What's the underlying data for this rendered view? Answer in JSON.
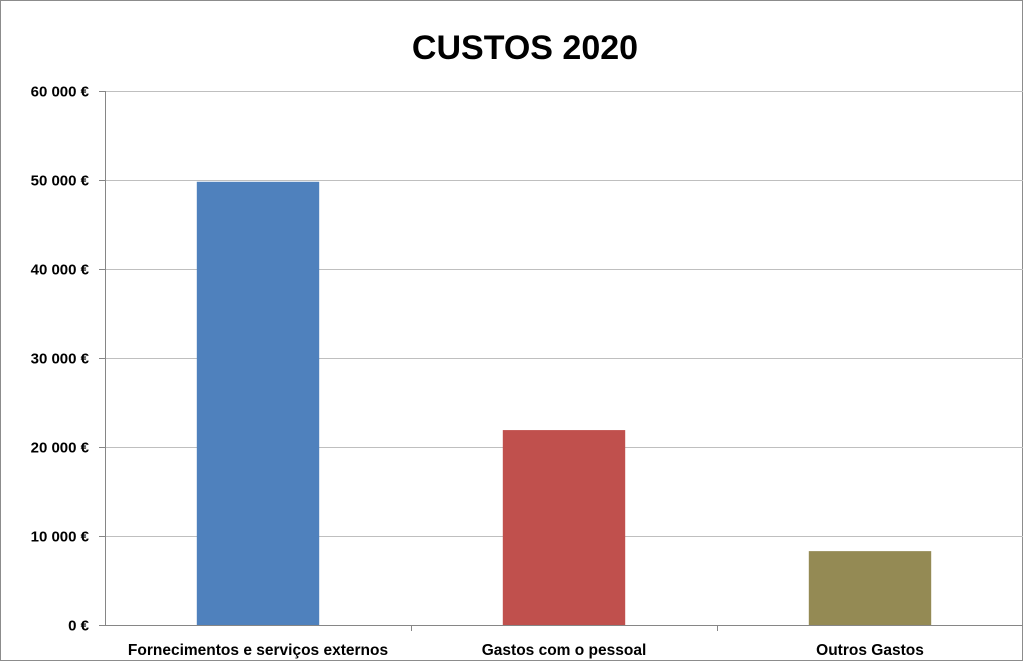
{
  "chart_data": {
    "type": "bar",
    "title": "CUSTOS 2020",
    "xlabel": "",
    "ylabel": "",
    "categories": [
      "Fornecimentos e serviços externos",
      "Gastos com o pessoal",
      "Outros Gastos"
    ],
    "values": [
      49800,
      21900,
      8300
    ],
    "colors": [
      "#4f81bd",
      "#c0504d",
      "#948a54"
    ],
    "ylim": [
      0,
      60000
    ],
    "yticks": [
      0,
      10000,
      20000,
      30000,
      40000,
      50000,
      60000
    ],
    "ytick_labels": [
      "0 €",
      "10 000 €",
      "20 000 €",
      "30 000 €",
      "40 000 €",
      "50 000 €",
      "60 000 €"
    ],
    "grid": true,
    "legend": "none"
  }
}
